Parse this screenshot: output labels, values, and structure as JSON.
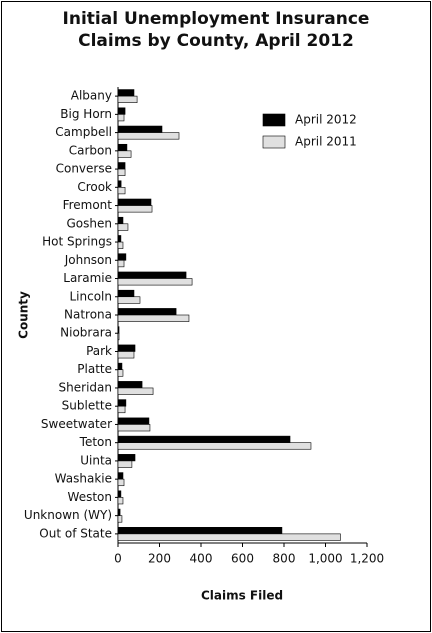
{
  "chart_data": {
    "type": "hbar",
    "title": "Initial Unemployment Insurance Claims by County, April 2012",
    "x_label": "Claims Filed",
    "y_label": "County",
    "categories": [
      "Albany",
      "Big Horn",
      "Campbell",
      "Carbon",
      "Converse",
      "Crook",
      "Fremont",
      "Goshen",
      "Hot Springs",
      "Johnson",
      "Laramie",
      "Lincoln",
      "Natrona",
      "Niobrara",
      "Park",
      "Platte",
      "Sheridan",
      "Sublette",
      "Sweetwater",
      "Teton",
      "Uinta",
      "Washakie",
      "Weston",
      "Unknown (WY)",
      "Out of State"
    ],
    "series": [
      {
        "name": "April 2012",
        "color": "#000000",
        "values": [
          77,
          34,
          212,
          43,
          34,
          15,
          159,
          24,
          14,
          38,
          328,
          77,
          280,
          5,
          82,
          19,
          116,
          38,
          149,
          829,
          82,
          24,
          14,
          10,
          790
        ]
      },
      {
        "name": "April 2011",
        "color": "#e0e0e0",
        "values": [
          92,
          29,
          294,
          63,
          34,
          34,
          164,
          48,
          24,
          29,
          357,
          106,
          342,
          5,
          77,
          24,
          169,
          34,
          154,
          930,
          67,
          29,
          24,
          19,
          1072
        ]
      }
    ],
    "xlim": [
      0,
      1200
    ],
    "xticks": [
      0,
      200,
      400,
      600,
      800,
      {
        "value": 1000,
        "label": "1,000"
      },
      {
        "value": 1200,
        "label": "1,200"
      }
    ],
    "legend": "upper right"
  }
}
